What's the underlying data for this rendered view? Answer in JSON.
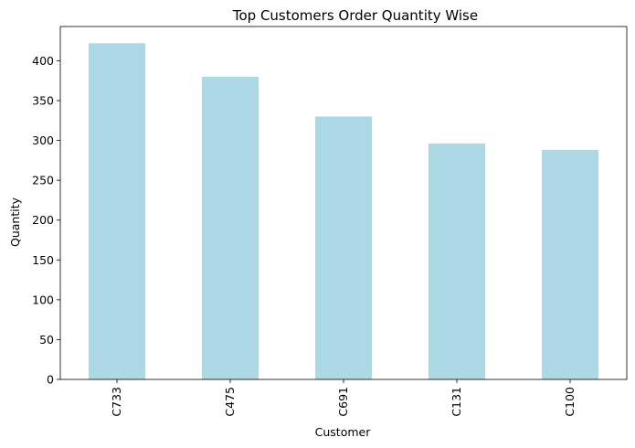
{
  "chart_data": {
    "type": "bar",
    "title": "Top Customers Order Quantity Wise",
    "xlabel": "Customer",
    "ylabel": "Quantity",
    "categories": [
      "C733",
      "C475",
      "C691",
      "C131",
      "C100"
    ],
    "values": [
      422,
      380,
      330,
      296,
      288
    ],
    "ylim": [
      0,
      443
    ],
    "yticks": [
      0,
      50,
      100,
      150,
      200,
      250,
      300,
      350,
      400
    ],
    "grid": false,
    "bar_color": "#add8e6"
  }
}
